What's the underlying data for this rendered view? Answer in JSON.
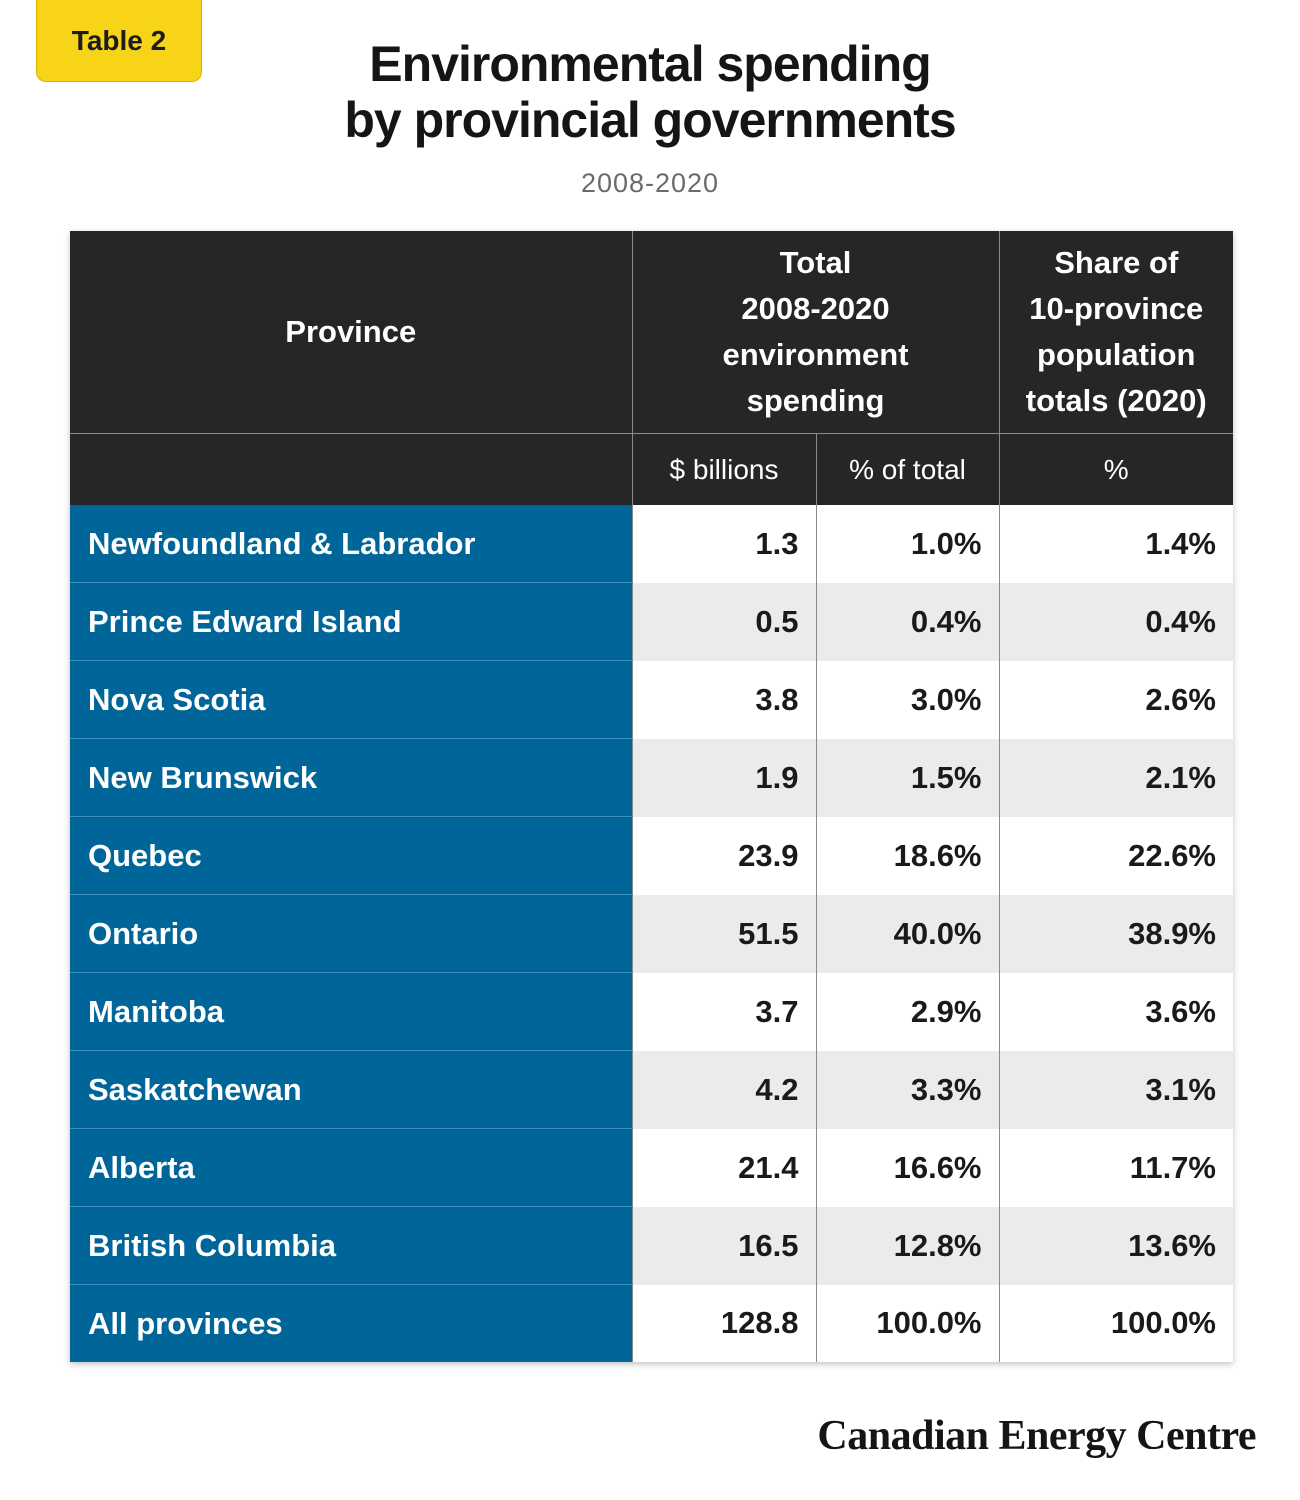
{
  "badge": "Table 2",
  "title_line1": "Environmental spending",
  "title_line2": "by provincial governments",
  "subtitle": "2008-2020",
  "header": {
    "province": "Province",
    "total_spending": [
      "Total",
      "2008-2020",
      "environment",
      "spending"
    ],
    "population_share": [
      "Share of",
      "10-province",
      "population",
      "totals (2020)"
    ],
    "sub_billions": "$ billions",
    "sub_pct_total": "% of total",
    "sub_pct": "%"
  },
  "chart_data": {
    "type": "table",
    "columns": [
      "Province",
      "$ billions",
      "% of total",
      "Share of 10-province population totals (2020) %"
    ],
    "rows": [
      {
        "province": "Newfoundland & Labrador",
        "billions": "1.3",
        "pct_total": "1.0%",
        "pop_share": "1.4%"
      },
      {
        "province": "Prince Edward Island",
        "billions": "0.5",
        "pct_total": "0.4%",
        "pop_share": "0.4%"
      },
      {
        "province": "Nova Scotia",
        "billions": "3.8",
        "pct_total": "3.0%",
        "pop_share": "2.6%"
      },
      {
        "province": "New Brunswick",
        "billions": "1.9",
        "pct_total": "1.5%",
        "pop_share": "2.1%"
      },
      {
        "province": "Quebec",
        "billions": "23.9",
        "pct_total": "18.6%",
        "pop_share": "22.6%"
      },
      {
        "province": "Ontario",
        "billions": "51.5",
        "pct_total": "40.0%",
        "pop_share": "38.9%"
      },
      {
        "province": "Manitoba",
        "billions": "3.7",
        "pct_total": "2.9%",
        "pop_share": "3.6%"
      },
      {
        "province": "Saskatchewan",
        "billions": "4.2",
        "pct_total": "3.3%",
        "pop_share": "3.1%"
      },
      {
        "province": "Alberta",
        "billions": "21.4",
        "pct_total": "16.6%",
        "pop_share": "11.7%"
      },
      {
        "province": "British Columbia",
        "billions": "16.5",
        "pct_total": "12.8%",
        "pop_share": "13.6%"
      },
      {
        "province": "All provinces",
        "billions": "128.8",
        "pct_total": "100.0%",
        "pop_share": "100.0%"
      }
    ]
  },
  "colors": {
    "badge": "#f7d417",
    "header_bg": "#262626",
    "province_bg": "#006699",
    "stripe": "#ebebeb"
  },
  "footer_logo": "Canadian Energy Centre"
}
